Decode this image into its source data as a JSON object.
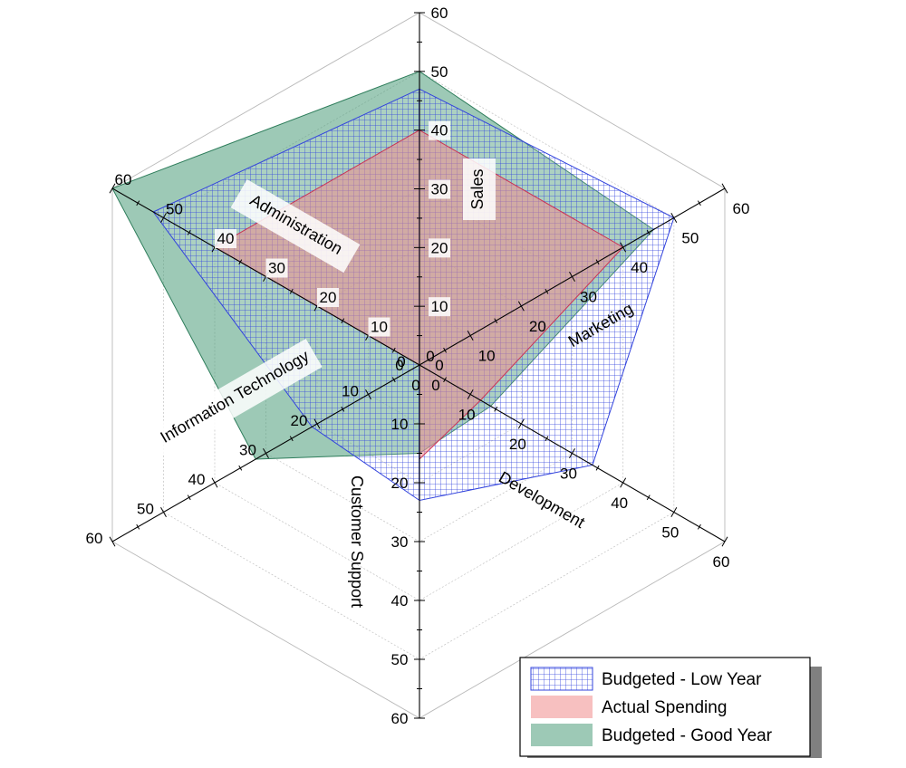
{
  "chart_data": {
    "type": "radar",
    "title": "",
    "axes": [
      "Sales",
      "Marketing",
      "Development",
      "Customer Support",
      "Information Technology",
      "Administration"
    ],
    "range": [
      0,
      60
    ],
    "ticks": [
      0,
      10,
      20,
      30,
      40,
      50,
      60
    ],
    "series": [
      {
        "name": "Budgeted - Low Year",
        "values": [
          47,
          50,
          34,
          23,
          21,
          52
        ],
        "color": "#3344dd",
        "fill": "grid-hatch"
      },
      {
        "name": "Actual Spending",
        "values": [
          40,
          40,
          12,
          16,
          0,
          40
        ],
        "color": "#ff9999",
        "fill": "solid"
      },
      {
        "name": "Budgeted - Good Year",
        "values": [
          50,
          46,
          14,
          15,
          32,
          60
        ],
        "color": "#2e7d5b",
        "fill": "solid"
      }
    ],
    "legend": "bottom-right",
    "grid": true
  }
}
